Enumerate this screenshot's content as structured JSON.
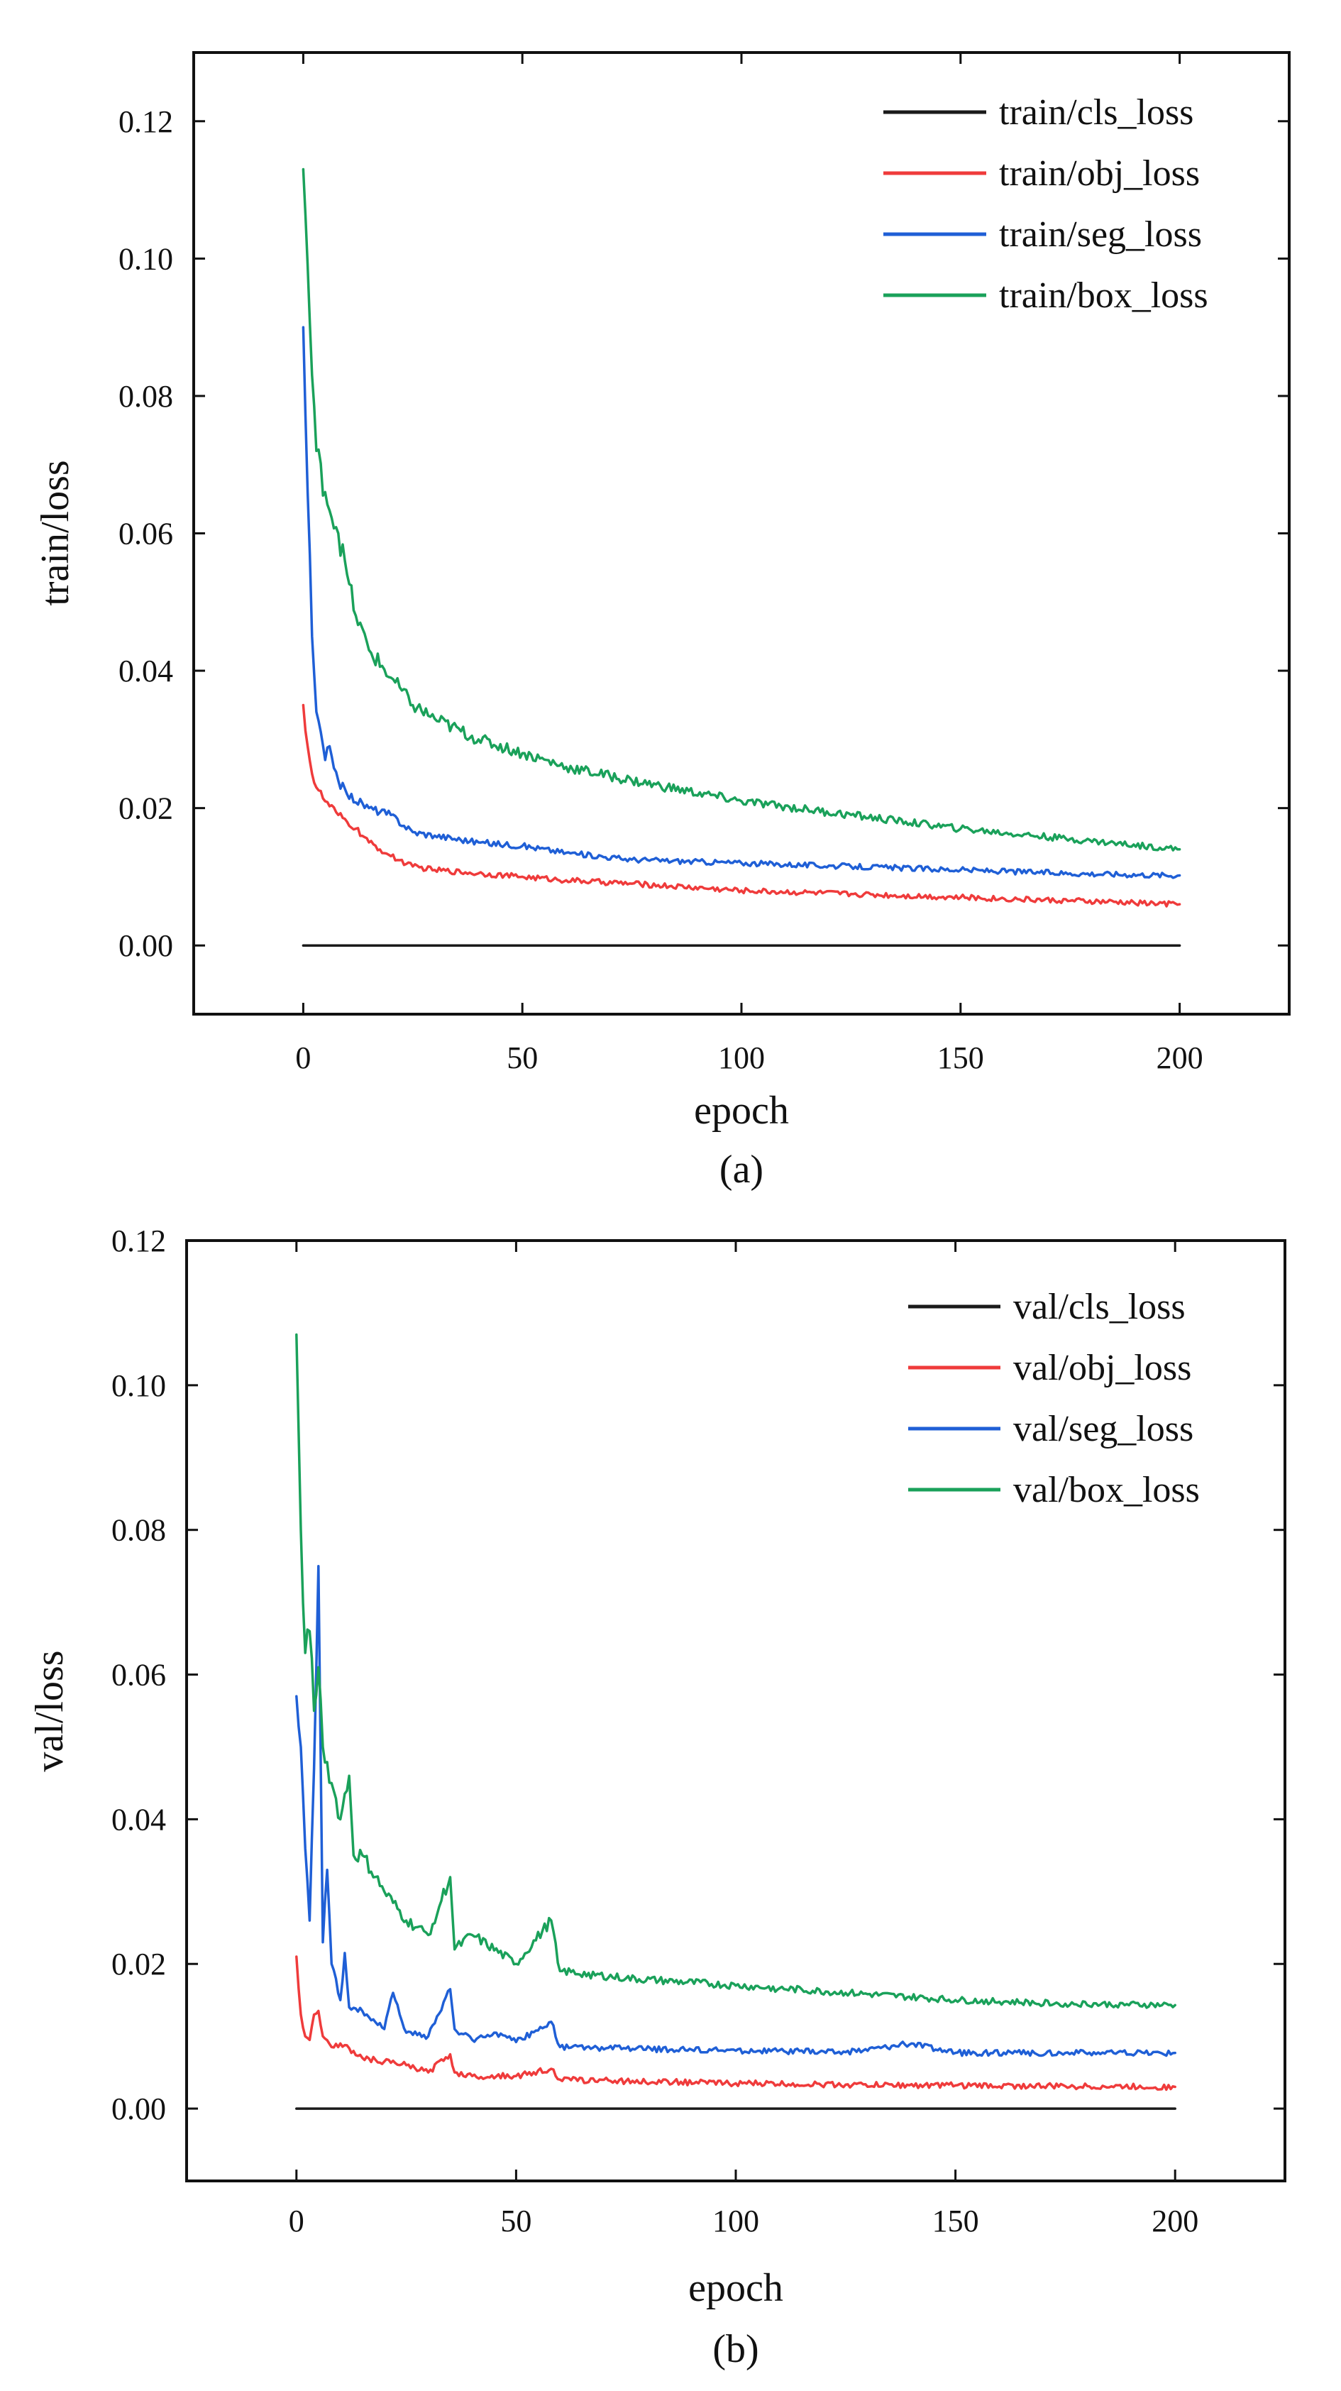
{
  "chart_data": [
    {
      "type": "line",
      "caption": "(a)",
      "xlabel": "epoch",
      "ylabel": "train/loss",
      "xlim": [
        -25,
        225
      ],
      "ylim": [
        -0.01,
        0.13
      ],
      "xticks": [
        0,
        50,
        100,
        150,
        200
      ],
      "xtick_labels": [
        "0",
        "50",
        "100",
        "150",
        "200"
      ],
      "yticks": [
        0.0,
        0.02,
        0.04,
        0.06,
        0.08,
        0.1,
        0.12
      ],
      "ytick_labels": [
        "0.00",
        "0.02",
        "0.04",
        "0.06",
        "0.08",
        "0.10",
        "0.12"
      ],
      "legend_position": "top-right",
      "series": [
        {
          "name": "train/cls_loss",
          "color": "#1a1a1a",
          "x": [
            0,
            200
          ],
          "y": [
            0.0,
            0.0
          ]
        },
        {
          "name": "train/obj_loss",
          "color": "#ef3b3b",
          "x": [
            0,
            1,
            2,
            3,
            5,
            8,
            10,
            12,
            15,
            20,
            25,
            30,
            40,
            50,
            60,
            75,
            100,
            125,
            150,
            175,
            200
          ],
          "y": [
            0.035,
            0.029,
            0.025,
            0.023,
            0.021,
            0.019,
            0.018,
            0.017,
            0.015,
            0.013,
            0.0115,
            0.011,
            0.0105,
            0.01,
            0.0095,
            0.009,
            0.008,
            0.0075,
            0.007,
            0.0065,
            0.006
          ]
        },
        {
          "name": "train/seg_loss",
          "color": "#1f5fd6",
          "x": [
            0,
            1,
            2,
            3,
            5,
            6,
            8,
            10,
            15,
            20,
            25,
            30,
            40,
            50,
            60,
            75,
            100,
            125,
            150,
            175,
            200
          ],
          "y": [
            0.09,
            0.066,
            0.045,
            0.034,
            0.027,
            0.029,
            0.024,
            0.022,
            0.02,
            0.019,
            0.0165,
            0.016,
            0.015,
            0.0145,
            0.0135,
            0.0125,
            0.012,
            0.0115,
            0.011,
            0.0105,
            0.0102
          ]
        },
        {
          "name": "train/box_loss",
          "color": "#1aa15a",
          "x": [
            0,
            1,
            2,
            3,
            5,
            8,
            10,
            12,
            15,
            20,
            25,
            30,
            40,
            50,
            60,
            75,
            100,
            125,
            150,
            175,
            200
          ],
          "y": [
            0.113,
            0.099,
            0.083,
            0.072,
            0.066,
            0.06,
            0.054,
            0.048,
            0.043,
            0.039,
            0.035,
            0.033,
            0.03,
            0.028,
            0.026,
            0.024,
            0.021,
            0.019,
            0.017,
            0.0155,
            0.014
          ]
        }
      ]
    },
    {
      "type": "line",
      "caption": "(b)",
      "xlabel": "epoch",
      "ylabel": "val/loss",
      "xlim": [
        -25,
        225
      ],
      "ylim": [
        -0.01,
        0.12
      ],
      "xticks": [
        0,
        50,
        100,
        150,
        200
      ],
      "xtick_labels": [
        "0",
        "50",
        "100",
        "150",
        "200"
      ],
      "yticks": [
        0.0,
        0.02,
        0.04,
        0.06,
        0.08,
        0.1,
        0.12
      ],
      "ytick_labels": [
        "0.00",
        "0.02",
        "0.04",
        "0.06",
        "0.08",
        "0.10",
        "0.12"
      ],
      "legend_position": "top-right",
      "series": [
        {
          "name": "val/cls_loss",
          "color": "#1a1a1a",
          "x": [
            0,
            200
          ],
          "y": [
            0.0,
            0.0
          ]
        },
        {
          "name": "val/obj_loss",
          "color": "#ef3b3b",
          "x": [
            0,
            1,
            2,
            3,
            4,
            5,
            6,
            8,
            10,
            15,
            20,
            25,
            30,
            35,
            36,
            40,
            50,
            58,
            60,
            75,
            100,
            125,
            150,
            175,
            200
          ],
          "y": [
            0.021,
            0.013,
            0.01,
            0.0095,
            0.013,
            0.0135,
            0.01,
            0.0085,
            0.009,
            0.007,
            0.0065,
            0.006,
            0.005,
            0.0075,
            0.005,
            0.0045,
            0.0045,
            0.0055,
            0.004,
            0.0038,
            0.0035,
            0.0033,
            0.0032,
            0.0031,
            0.003
          ]
        },
        {
          "name": "val/seg_loss",
          "color": "#1f5fd6",
          "x": [
            0,
            1,
            2,
            3,
            4,
            5,
            6,
            7,
            8,
            10,
            11,
            12,
            15,
            20,
            22,
            25,
            30,
            35,
            36,
            40,
            45,
            50,
            58,
            60,
            75,
            100,
            125,
            140,
            150,
            175,
            200
          ],
          "y": [
            0.057,
            0.05,
            0.036,
            0.026,
            0.047,
            0.075,
            0.023,
            0.033,
            0.02,
            0.015,
            0.0215,
            0.014,
            0.0135,
            0.011,
            0.016,
            0.0105,
            0.01,
            0.0165,
            0.011,
            0.0095,
            0.0105,
            0.0092,
            0.012,
            0.0085,
            0.0083,
            0.008,
            0.0078,
            0.009,
            0.0077,
            0.0077,
            0.0077
          ]
        },
        {
          "name": "val/box_loss",
          "color": "#1aa15a",
          "x": [
            0,
            1,
            2,
            3,
            4,
            5,
            6,
            8,
            10,
            12,
            13,
            15,
            20,
            25,
            30,
            35,
            36,
            40,
            50,
            58,
            60,
            75,
            100,
            125,
            150,
            175,
            200
          ],
          "y": [
            0.107,
            0.08,
            0.063,
            0.066,
            0.055,
            0.061,
            0.05,
            0.045,
            0.04,
            0.046,
            0.035,
            0.035,
            0.03,
            0.026,
            0.024,
            0.032,
            0.022,
            0.024,
            0.02,
            0.026,
            0.019,
            0.018,
            0.017,
            0.016,
            0.015,
            0.0145,
            0.0143
          ]
        }
      ]
    }
  ]
}
